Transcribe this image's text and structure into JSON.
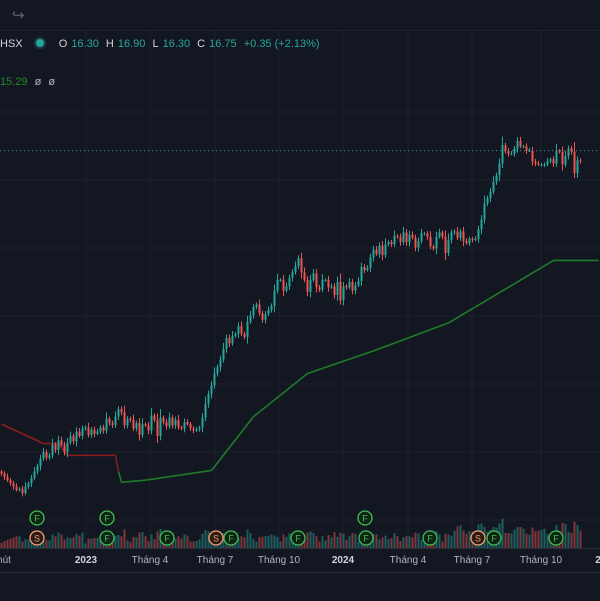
{
  "legend": {
    "symbol": "HSX",
    "o_label": "O",
    "o_value": "16.30",
    "h_label": "H",
    "h_value": "16.90",
    "l_label": "L",
    "l_value": "16.30",
    "c_label": "C",
    "c_value": "16.75",
    "change": "+0.35 (+2.13%)"
  },
  "indicator": {
    "value": "15.29",
    "extra1": "ø",
    "extra2": "ø"
  },
  "x_axis": {
    "partial_left": "hút",
    "labels": [
      "2023",
      "Tháng 4",
      "Tháng 7",
      "Tháng 10",
      "2024",
      "Tháng 4",
      "Tháng 7",
      "Tháng 10",
      "2"
    ]
  },
  "colors": {
    "up": "#26a69a",
    "down": "#ef5350",
    "stop_up": "#1e7b28",
    "stop_down": "#8b1c1c",
    "background": "#131722"
  },
  "icons": {
    "redo": "redo-arrow-icon",
    "live": "live-status-dot"
  },
  "event_markers": {
    "row1": [
      "F",
      "F",
      "F"
    ],
    "row2": [
      "S",
      "F",
      "F",
      "S",
      "F",
      "F",
      "F",
      "F",
      "S",
      "F",
      "F"
    ]
  },
  "chart_data": {
    "type": "candlestick",
    "close_series": [
      13.3,
      13.0,
      12.7,
      12.4,
      12.1,
      11.8,
      11.9,
      11.5,
      12.1,
      12.4,
      12.9,
      13.5,
      14.0,
      14.7,
      15.3,
      14.8,
      15.0,
      16.0,
      15.5,
      16.4,
      16.0,
      15.3,
      16.2,
      16.8,
      16.3,
      17.2,
      16.8,
      17.5,
      17.6,
      16.9,
      17.4,
      17.0,
      17.2,
      17.6,
      17.3,
      18.4,
      18.0,
      17.8,
      18.6,
      19.3,
      19.0,
      17.8,
      18.4,
      18.3,
      17.5,
      18.0,
      16.9,
      17.9,
      17.8,
      17.3,
      18.7,
      18.3,
      16.8,
      18.5,
      18.1,
      17.7,
      18.5,
      17.8,
      18.3,
      17.6,
      17.5,
      18.1,
      17.9,
      17.5,
      17.3,
      17.4,
      17.6,
      18.5,
      19.8,
      20.7,
      21.5,
      22.6,
      23.2,
      23.9,
      24.9,
      25.9,
      25.4,
      26.1,
      26.3,
      27.0,
      26.3,
      26.0,
      27.4,
      28.0,
      28.8,
      29.0,
      28.2,
      27.6,
      28.1,
      28.5,
      28.9,
      30.3,
      31.3,
      31.3,
      30.3,
      30.7,
      31.5,
      32.0,
      32.6,
      33.3,
      32.0,
      31.3,
      30.2,
      31.3,
      31.9,
      30.6,
      30.4,
      31.3,
      31.3,
      30.6,
      30.7,
      29.9,
      31.1,
      29.4,
      30.7,
      30.6,
      31.1,
      30.3,
      30.8,
      31.2,
      32.5,
      32.2,
      32.4,
      33.4,
      34.1,
      33.7,
      34.5,
      33.6,
      34.6,
      34.8,
      34.6,
      35.4,
      35.3,
      34.8,
      35.7,
      34.8,
      35.5,
      35.2,
      34.3,
      34.9,
      35.6,
      35.6,
      35.3,
      34.4,
      34.2,
      35.3,
      35.7,
      35.3,
      33.8,
      35.0,
      35.7,
      35.8,
      35.2,
      35.8,
      34.9,
      34.7,
      35.1,
      35.0,
      35.1,
      36.0,
      36.9,
      38.4,
      38.9,
      39.5,
      40.4,
      41.0,
      42.1,
      43.8,
      43.3,
      43.0,
      43.0,
      43.5,
      44.2,
      43.7,
      43.7,
      43.3,
      43.3,
      42.3,
      42.1,
      42.0,
      42.0,
      42.0,
      42.3,
      42.5,
      42.1,
      43.3,
      43.2,
      42.0,
      42.8,
      43.5,
      43.2,
      41.2,
      42.4,
      42.3
    ],
    "trailing_stop": [
      {
        "x": 0,
        "y": 17.9,
        "trend": "down"
      },
      {
        "x": 14,
        "y": 16.1,
        "trend": "down"
      },
      {
        "x": 19,
        "y": 16.1,
        "trend": "down"
      },
      {
        "x": 22,
        "y": 15.0,
        "trend": "down"
      },
      {
        "x": 38,
        "y": 15.0,
        "trend": "down"
      },
      {
        "x": 39,
        "y": 13.5,
        "trend": "up"
      },
      {
        "x": 40,
        "y": 12.5,
        "trend": "up"
      },
      {
        "x": 48,
        "y": 12.7,
        "trend": "up"
      },
      {
        "x": 70,
        "y": 13.6,
        "trend": "up"
      },
      {
        "x": 84,
        "y": 18.6,
        "trend": "up"
      },
      {
        "x": 102,
        "y": 22.6,
        "trend": "up"
      },
      {
        "x": 125,
        "y": 24.8,
        "trend": "up"
      },
      {
        "x": 149,
        "y": 27.3,
        "trend": "up"
      },
      {
        "x": 184,
        "y": 33.1,
        "trend": "up"
      },
      {
        "x": 199,
        "y": 33.1,
        "trend": "up"
      }
    ],
    "price_line": 43.3,
    "ylim": [
      9.0,
      48.0
    ],
    "xlabel": "",
    "ylabel": ""
  }
}
